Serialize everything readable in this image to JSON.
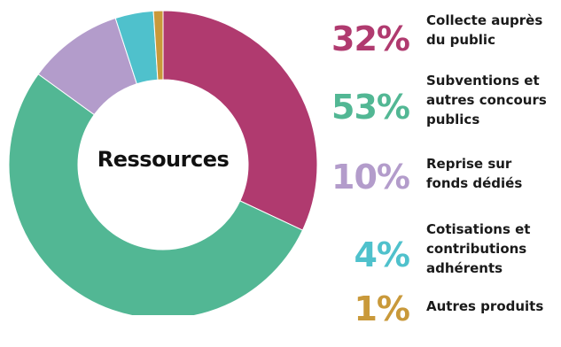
{
  "chart_data": {
    "type": "pie",
    "title": "Ressources",
    "colors": {
      "Collecte auprès du public": "#b03a6f",
      "Subventions et autres concours publics": "#52b794",
      "Reprise sur fonds dédiés": "#b39ccb",
      "Cotisations et contributions adhérents": "#4fc1cc",
      "Autres produits": "#c9993a"
    },
    "slices": [
      {
        "label": "Collecte auprès du public",
        "value": 32,
        "pct": "32%",
        "desc": "Collecte auprès\ndu public"
      },
      {
        "label": "Subventions et autres concours publics",
        "value": 53,
        "pct": "53%",
        "desc": "Subventions et\nautres concours\npublics"
      },
      {
        "label": "Reprise sur fonds dédiés",
        "value": 10,
        "pct": "10%",
        "desc": "Reprise sur\nfonds dédiés"
      },
      {
        "label": "Cotisations et contributions adhérents",
        "value": 4,
        "pct": "4%",
        "desc": "Cotisations et\ncontributions\nadhérents"
      },
      {
        "label": "Autres produits",
        "value": 1,
        "pct": "1%",
        "desc": "Autres produits"
      }
    ]
  }
}
